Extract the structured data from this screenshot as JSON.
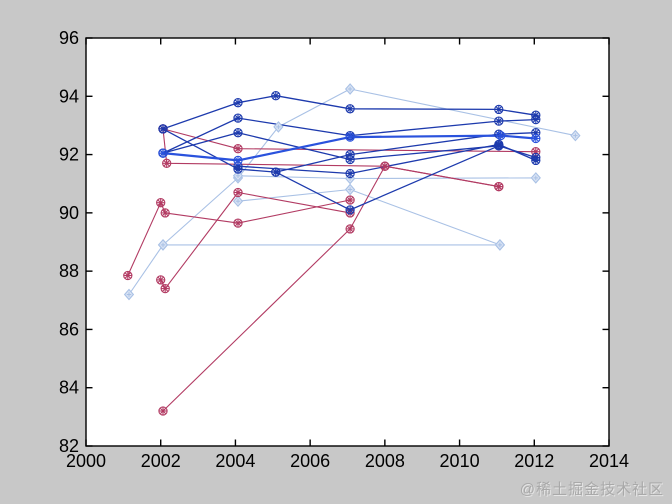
{
  "figure": {
    "background": "#c8c8c8",
    "plot_background": "#ffffff",
    "axis_color": "#000000",
    "tick_label_color": "#000000"
  },
  "watermark": {
    "text": "@稀土掘金技术社区",
    "color": "#a9a9a9"
  },
  "chart_data": {
    "type": "line",
    "title": "",
    "xlabel": "",
    "ylabel": "",
    "xlim": [
      2000,
      2014
    ],
    "ylim": [
      82,
      96
    ],
    "x_ticks": [
      "2000",
      "2002",
      "2004",
      "2006",
      "2008",
      "2010",
      "2012",
      "2014"
    ],
    "x_tick_values": [
      2000,
      2002,
      2004,
      2006,
      2008,
      2010,
      2012,
      2014
    ],
    "y_ticks": [
      "82",
      "84",
      "86",
      "88",
      "90",
      "92",
      "94",
      "96"
    ],
    "y_tick_values": [
      82,
      84,
      86,
      88,
      90,
      92,
      94,
      96
    ],
    "grid": false,
    "legend": null,
    "series": [
      {
        "name": "light-blue-1",
        "color": "#a9c1e5",
        "line_width": 1.1,
        "marker": "diamond",
        "points": [
          [
            2001.15,
            87.2
          ],
          [
            2002.06,
            88.9
          ],
          [
            2004.07,
            91.2
          ],
          [
            2005.15,
            92.95
          ],
          [
            2007.07,
            94.25
          ],
          [
            2013.1,
            92.65
          ]
        ]
      },
      {
        "name": "light-blue-2",
        "color": "#a9c1e5",
        "line_width": 1.1,
        "marker": "diamond",
        "points": [
          [
            2004.07,
            90.4
          ],
          [
            2007.07,
            90.8
          ],
          [
            2011.08,
            88.9
          ]
        ]
      },
      {
        "name": "light-blue-3",
        "color": "#a9c1e5",
        "line_width": 1.1,
        "marker": "diamond",
        "points": [
          [
            2004.07,
            91.27
          ],
          [
            2007.07,
            91.18
          ],
          [
            2012.04,
            91.2
          ]
        ]
      },
      {
        "name": "light-blue-4",
        "color": "#a9c1e5",
        "line_width": 1.1,
        "marker": "diamond",
        "points": [
          [
            2002.06,
            88.9
          ],
          [
            2011.08,
            88.9
          ]
        ]
      },
      {
        "name": "red-1",
        "color": "#b23b63",
        "line_width": 1.1,
        "marker": "star-circle",
        "points": [
          [
            2002.06,
            83.2
          ],
          [
            2007.07,
            89.45
          ],
          [
            2008.0,
            91.6
          ],
          [
            2011.05,
            90.9
          ]
        ]
      },
      {
        "name": "red-2",
        "color": "#b23b63",
        "line_width": 1.1,
        "marker": "star-circle",
        "points": [
          [
            2001.12,
            87.85
          ],
          [
            2002.0,
            90.35
          ],
          [
            2002.12,
            90.0
          ],
          [
            2004.07,
            89.65
          ],
          [
            2007.07,
            90.44
          ]
        ]
      },
      {
        "name": "red-3",
        "color": "#b23b63",
        "line_width": 1.1,
        "marker": "star-circle",
        "points": [
          [
            2002.0,
            87.7
          ],
          [
            2002.12,
            87.4
          ],
          [
            2004.07,
            90.7
          ],
          [
            2007.07,
            90.0
          ]
        ]
      },
      {
        "name": "red-4",
        "color": "#b23b63",
        "line_width": 1.1,
        "marker": "star-circle",
        "points": [
          [
            2002.06,
            92.88
          ],
          [
            2002.16,
            91.7
          ],
          [
            2008.0,
            91.6
          ],
          [
            2011.05,
            90.9
          ]
        ]
      },
      {
        "name": "red-5",
        "color": "#b23b63",
        "line_width": 1.1,
        "marker": "star-circle",
        "points": [
          [
            2002.06,
            92.88
          ],
          [
            2004.07,
            92.2
          ],
          [
            2012.04,
            92.1
          ]
        ]
      },
      {
        "name": "dark-blue-1",
        "color": "#1d3aad",
        "line_width": 1.3,
        "marker": "star-circle",
        "points": [
          [
            2002.06,
            92.88
          ],
          [
            2004.07,
            93.78
          ],
          [
            2005.08,
            94.02
          ],
          [
            2007.07,
            93.57
          ],
          [
            2011.05,
            93.55
          ],
          [
            2012.04,
            93.35
          ]
        ]
      },
      {
        "name": "dark-blue-2",
        "color": "#1d3aad",
        "line_width": 1.3,
        "marker": "star-circle",
        "points": [
          [
            2002.06,
            92.05
          ],
          [
            2004.07,
            93.25
          ],
          [
            2007.07,
            92.65
          ],
          [
            2011.05,
            93.15
          ],
          [
            2012.04,
            93.2
          ]
        ]
      },
      {
        "name": "dark-blue-3",
        "color": "#1d3aad",
        "line_width": 1.3,
        "marker": "star-circle",
        "points": [
          [
            2002.06,
            92.88
          ],
          [
            2004.07,
            91.5
          ],
          [
            2005.08,
            91.4
          ],
          [
            2007.07,
            92.0
          ],
          [
            2011.05,
            92.7
          ],
          [
            2012.04,
            92.75
          ]
        ]
      },
      {
        "name": "dark-blue-4",
        "color": "#1d3aad",
        "line_width": 1.3,
        "marker": "star-circle",
        "points": [
          [
            2002.06,
            92.05
          ],
          [
            2004.07,
            92.75
          ],
          [
            2007.07,
            91.83
          ],
          [
            2011.05,
            92.3
          ],
          [
            2012.04,
            91.9
          ]
        ]
      },
      {
        "name": "dark-blue-5",
        "color": "#1d3aad",
        "line_width": 1.3,
        "marker": "star-circle",
        "points": [
          [
            2004.07,
            91.6
          ],
          [
            2007.07,
            91.35
          ],
          [
            2011.05,
            92.35
          ],
          [
            2012.04,
            91.8
          ]
        ]
      },
      {
        "name": "dark-blue-6",
        "color": "#1d3aad",
        "line_width": 1.3,
        "marker": "star-circle",
        "points": [
          [
            2005.08,
            91.4
          ],
          [
            2007.07,
            90.1
          ],
          [
            2011.05,
            92.3
          ]
        ]
      },
      {
        "name": "bright-blue-1",
        "color": "#2a52dd",
        "line_width": 2.2,
        "marker": "star-circle",
        "points": [
          [
            2002.06,
            92.05
          ],
          [
            2004.07,
            91.8
          ],
          [
            2007.07,
            92.6
          ],
          [
            2011.1,
            92.65
          ],
          [
            2012.04,
            92.55
          ]
        ]
      }
    ]
  }
}
